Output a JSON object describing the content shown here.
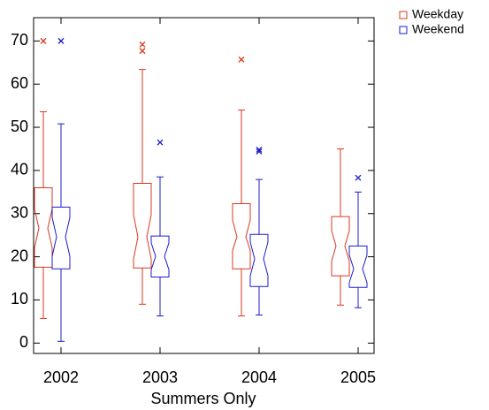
{
  "chart_data": {
    "type": "box",
    "x_label": "Summers Only",
    "categories": [
      "2002",
      "2003",
      "2004",
      "2005"
    ],
    "ylim": [
      -2.4,
      75.4
    ],
    "yticks": [
      0,
      10,
      20,
      30,
      40,
      50,
      60,
      70
    ],
    "notched": true,
    "legend": "outside-top-right",
    "series": [
      {
        "name": "Weekday",
        "color": "#d9381e",
        "boxes": [
          {
            "whislo": 5.7,
            "q1": 17.6,
            "notchlo": 22.1,
            "med": 26.6,
            "notchhi": 31.1,
            "q3": 36.0,
            "whishi": 53.6,
            "fliers": [
              70
            ]
          },
          {
            "whislo": 9.0,
            "q1": 17.4,
            "notchlo": 19.5,
            "med": 24.6,
            "notchhi": 29.7,
            "q3": 37.0,
            "whishi": 63.4,
            "fliers": [
              69.2,
              67.7
            ]
          },
          {
            "whislo": 6.3,
            "q1": 17.2,
            "notchlo": 21.5,
            "med": 24.6,
            "notchhi": 28.5,
            "q3": 32.3,
            "whishi": 54.0,
            "fliers": [
              65.7
            ]
          },
          {
            "whislo": 8.8,
            "q1": 15.6,
            "notchlo": 19.0,
            "med": 22.5,
            "notchhi": 26.0,
            "q3": 29.3,
            "whishi": 45.0,
            "fliers": []
          }
        ]
      },
      {
        "name": "Weekend",
        "color": "#1c1ccc",
        "boxes": [
          {
            "whislo": 0.4,
            "q1": 17.2,
            "notchlo": 20.1,
            "med": 24.6,
            "notchhi": 29.1,
            "q3": 31.5,
            "whishi": 50.8,
            "fliers": [
              70
            ]
          },
          {
            "whislo": 6.3,
            "q1": 15.3,
            "notchlo": 17.0,
            "med": 20.1,
            "notchhi": 23.2,
            "q3": 24.8,
            "whishi": 38.5,
            "fliers": [
              46.5
            ]
          },
          {
            "whislo": 6.5,
            "q1": 13.1,
            "notchlo": 15.6,
            "med": 19.5,
            "notchhi": 23.4,
            "q3": 25.2,
            "whishi": 37.9,
            "fliers": [
              44.8,
              44.4
            ]
          },
          {
            "whislo": 8.2,
            "q1": 12.9,
            "notchlo": 14.0,
            "med": 17.2,
            "notchhi": 20.4,
            "q3": 22.5,
            "whishi": 35.0,
            "fliers": [
              38.3
            ]
          }
        ]
      }
    ]
  }
}
